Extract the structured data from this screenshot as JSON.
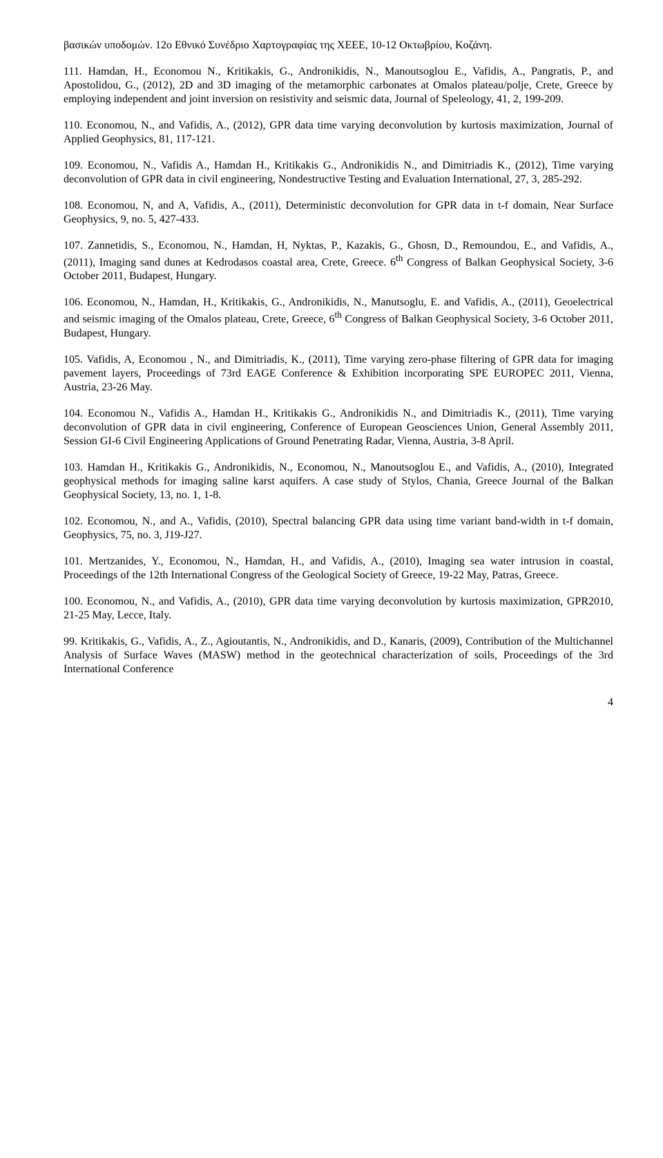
{
  "paragraphs": [
    "βασικών υποδομών. 12ο Εθνικό Συνέδριο Χαρτογραφίας της ΧΕΕΕ, 10-12 Οκτωβρίου, Κοζάνη.",
    "111. Hamdan, H., Economou N., Kritikakis, G., Andronikidis, N., Manoutsoglou E., Vafidis, A., Pangratis, P., and Apostolidou, G., (2012), 2D and 3D imaging of the metamorphic carbonates at Omalos plateau/polje, Crete, Greece by employing independent and joint inversion on resistivity and seismic data, Journal of Speleology, 41, 2, 199-209.",
    "110. Economou, N., and Vafidis, A., (2012), GPR data time varying deconvolution by kurtosis maximization, Journal of Applied Geophysics, 81, 117-121.",
    "109. Economou, N., Vafidis A., Hamdan H., Kritikakis G., Andronikidis N., and Dimitriadis K., (2012), Time varying deconvolution of GPR data in civil engineering, Nondestructive Testing and Evaluation International, 27, 3, 285-292.",
    "108. Economou, N, and A, Vafidis, A., (2011), Deterministic deconvolution for GPR data in t-f domain, Near Surface Geophysics, 9, no. 5, 427-433.",
    "107. Zannetidis, S., Economou, N., Hamdan, H, Nyktas, P., Kazakis, G., Ghosn, D., Remoundou, E., and Vafidis, A., (2011), Imaging sand dunes at Kedrodasos coastal area, Crete, Greece. 6th Congress of Balkan Geophysical Society, 3-6 October 2011, Budapest, Hungary.",
    "106. Economou, N., Hamdan, H., Kritikakis, G., Andronikidis, N., Manutsoglu, E. and Vafidis, A., (2011), Geoelectrical and seismic imaging of the Omalos plateau, Crete, Greece, 6th Congress of Balkan Geophysical Society, 3-6 October 2011, Budapest, Hungary.",
    "105. Vafidis, A, Economou , N., and Dimitriadis, K., (2011), Time varying zero-phase filtering of GPR data for imaging pavement layers, Proceedings of 73rd EAGE Conference & Exhibition incorporating SPE EUROPEC 2011, Vienna, Austria, 23-26 May.",
    "104. Economou N., Vafidis A., Hamdan H., Kritikakis G., Andronikidis N., and Dimitriadis K., (2011), Time varying deconvolution of GPR data in civil engineering, Conference of European Geosciences Union, General Assembly 2011, Session GI-6 Civil Engineering Applications of Ground Penetrating Radar, Vienna, Austria, 3-8 April.",
    "103. Hamdan H., Kritikakis G., Andronikidis, N., Economou, N., Manoutsoglou E., and Vafidis, A., (2010), Integrated geophysical methods for imaging saline karst aquifers. A case study of Stylos, Chania, Greece Journal of the Balkan Geophysical Society, 13, no. 1, 1-8.",
    "102. Economou, N., and A., Vafidis, (2010), Spectral balancing GPR data using time variant band-width in t-f domain, Geophysics, 75, no. 3, J19-J27.",
    "101. Mertzanides, Y., Economou, N., Hamdan, H., and Vafidis, A., (2010), Imaging sea water intrusion in coastal, Proceedings of the 12th International Congress of the Geological Society of Greece, 19-22 May, Patras, Greece.",
    "100. Economou, N., and Vafidis, A., (2010), GPR data time varying deconvolution by kurtosis maximization, GPR2010, 21-25 May, Lecce, Italy.",
    "99. Kritikakis, G., Vafidis, A., Z., Agioutantis, N., Andronikidis, and D., Kanaris, (2009), Contribution of the Multichannel Analysis of Surface Waves (MASW) method in the geotechnical characterization of soils, Proceedings of the 3rd International Conference"
  ],
  "page_number": "4",
  "sup_map": {
    "5": true,
    "6": true
  }
}
